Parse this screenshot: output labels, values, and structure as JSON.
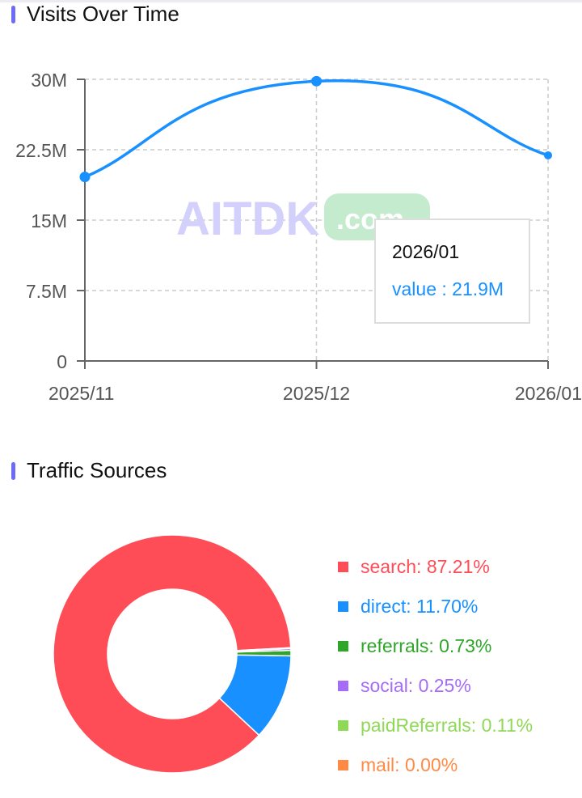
{
  "visits": {
    "title": "Visits Over Time",
    "tooltip": {
      "label": "2026/01",
      "value_text": "value : 21.9M"
    },
    "watermark": {
      "text": "AITDK",
      "suffix": ".com"
    }
  },
  "traffic": {
    "title": "Traffic Sources"
  },
  "chart_data": [
    {
      "type": "line",
      "title": "Visits Over Time",
      "categories": [
        "2025/11",
        "2025/12",
        "2026/01"
      ],
      "values": [
        19.6,
        29.8,
        21.9
      ],
      "unit": "M",
      "ylim": [
        0,
        30
      ],
      "yticks": [
        "0",
        "7.5M",
        "15M",
        "22.5M",
        "30M"
      ],
      "ytick_values": [
        0,
        7.5,
        15,
        22.5,
        30
      ],
      "grid": true,
      "color": "#1890ff"
    },
    {
      "type": "pie",
      "title": "Traffic Sources",
      "legend_position": "right",
      "slices": [
        {
          "name": "search",
          "value": 87.21,
          "label": "search: 87.21%",
          "color": "#ff4d57"
        },
        {
          "name": "direct",
          "value": 11.7,
          "label": "direct: 11.70%",
          "color": "#1890ff"
        },
        {
          "name": "referrals",
          "value": 0.73,
          "label": "referrals: 0.73%",
          "color": "#2fa52a"
        },
        {
          "name": "social",
          "value": 0.25,
          "label": "social: 0.25%",
          "color": "#a56cf7"
        },
        {
          "name": "paidReferrals",
          "value": 0.11,
          "label": "paidReferrals: 0.11%",
          "color": "#8fd858"
        },
        {
          "name": "mail",
          "value": 0.0,
          "label": "mail: 0.00%",
          "color": "#ff8a45"
        }
      ]
    }
  ]
}
